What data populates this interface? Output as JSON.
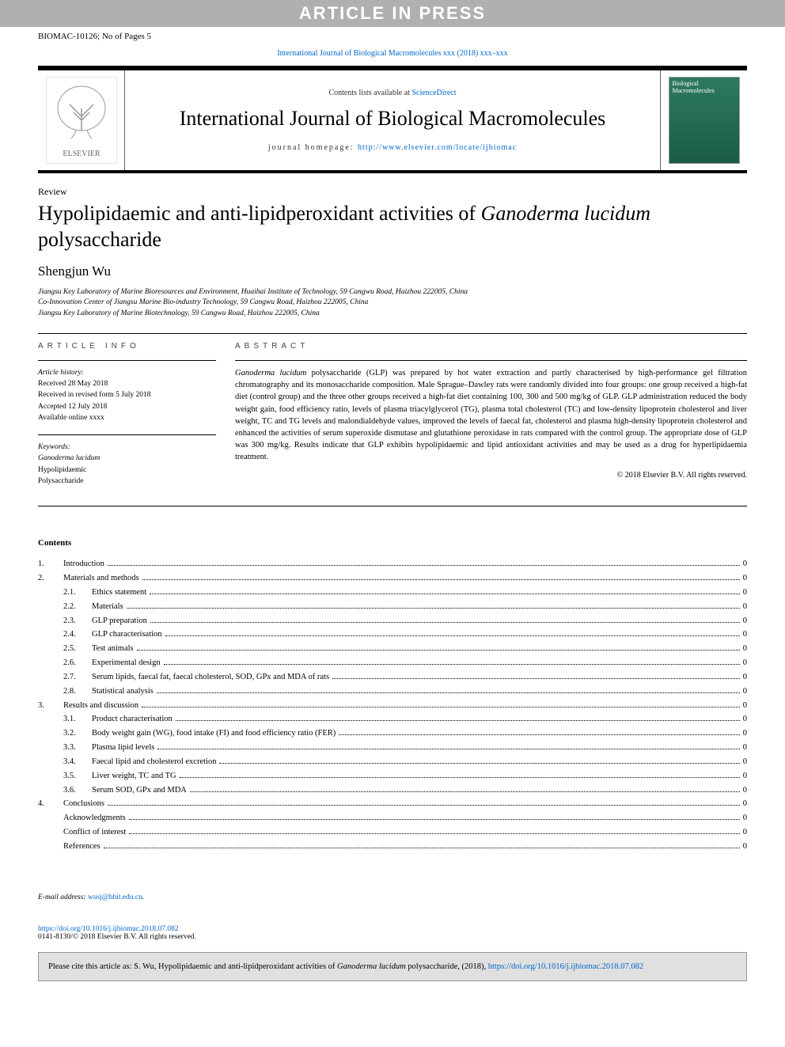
{
  "watermark": "ARTICLE IN PRESS",
  "manuscript_id": "BIOMAC-10126; No of Pages 5",
  "top_citation": {
    "text_prefix": "International Journal of Biological Macromolecules xxx (2018) xxx–xxx",
    "link_text": "International Journal of Biological Macromolecules xxx (2018) xxx–xxx"
  },
  "header": {
    "contents_avail_prefix": "Contents lists available at ",
    "contents_avail_link": "ScienceDirect",
    "journal_name": "International Journal of Biological Macromolecules",
    "homepage_label": "journal homepage: ",
    "homepage_url": "http://www.elsevier.com/locate/ijbiomac",
    "cover_title": "Biological Macromolecules"
  },
  "article": {
    "type": "Review",
    "title_pre": "Hypolipidaemic and anti-lipidperoxidant activities of ",
    "title_species": "Ganoderma lucidum",
    "title_post": " polysaccharide",
    "author": "Shengjun Wu",
    "affiliations": [
      "Jiangsu Key Laboratory of Marine Bioresources and Environment, Huaihai Institute of Technology, 59 Cangwu Road, Haizhou 222005, China",
      "Co-Innovation Center of Jiangsu Marine Bio-industry Technology, 59 Cangwu Road, Haizhou 222005, China",
      "Jiangsu Key Laboratory of Marine Biotechnology, 59 Cangwu Road, Haizhou 222005, China"
    ]
  },
  "info": {
    "section_label": "article info",
    "history_heading": "Article history:",
    "history": [
      "Received 28 May 2018",
      "Received in revised form 5 July 2018",
      "Accepted 12 July 2018",
      "Available online xxxx"
    ],
    "keywords_heading": "Keywords:",
    "keywords": [
      "Ganoderma lucidum",
      "Hypolipidaemic",
      "Polysaccharide"
    ]
  },
  "abstract": {
    "section_label": "abstract",
    "species": "Ganoderma lucidum",
    "text_post": " polysaccharide (GLP) was prepared by hot water extraction and partly characterised by high-performance gel filtration chromatography and its monosaccharide composition. Male Sprague–Dawley rats were randomly divided into four groups: one group received a high-fat diet (control group) and the three other groups received a high-fat diet containing 100, 300 and 500 mg/kg of GLP. GLP administration reduced the body weight gain, food efficiency ratio, levels of plasma triacylglycerol (TG), plasma total cholesterol (TC) and low-density lipoprotein cholesterol and liver weight, TC and TG levels and malondialdehyde values, improved the levels of faecal fat, cholesterol and plasma high-density lipoprotein cholesterol and enhanced the activities of serum superoxide dismutase and glutathione peroxidase in rats compared with the control group. The appropriate dose of GLP was 300 mg/kg. Results indicate that GLP exhibits hypolipidaemic and lipid antioxidant activities and may be used as a drug for hyperlipidaemia treatment.",
    "copyright": "© 2018 Elsevier B.V. All rights reserved."
  },
  "contents": {
    "heading": "Contents",
    "items": [
      {
        "num": "1.",
        "label": "Introduction",
        "page": "0",
        "sub": false
      },
      {
        "num": "2.",
        "label": "Materials and methods",
        "page": "0",
        "sub": false
      },
      {
        "num": "2.1.",
        "label": "Ethics statement",
        "page": "0",
        "sub": true
      },
      {
        "num": "2.2.",
        "label": "Materials",
        "page": "0",
        "sub": true
      },
      {
        "num": "2.3.",
        "label": "GLP preparation",
        "page": "0",
        "sub": true
      },
      {
        "num": "2.4.",
        "label": "GLP characterisation",
        "page": "0",
        "sub": true
      },
      {
        "num": "2.5.",
        "label": "Test animals",
        "page": "0",
        "sub": true
      },
      {
        "num": "2.6.",
        "label": "Experimental design",
        "page": "0",
        "sub": true
      },
      {
        "num": "2.7.",
        "label": "Serum lipids, faecal fat, faecal cholesterol, SOD, GPx and MDA of rats",
        "page": "0",
        "sub": true
      },
      {
        "num": "2.8.",
        "label": "Statistical analysis",
        "page": "0",
        "sub": true
      },
      {
        "num": "3.",
        "label": "Results and discussion",
        "page": "0",
        "sub": false
      },
      {
        "num": "3.1.",
        "label": "Product characterisation",
        "page": "0",
        "sub": true
      },
      {
        "num": "3.2.",
        "label": "Body weight gain (WG), food intake (FI) and food efficiency ratio (FER)",
        "page": "0",
        "sub": true
      },
      {
        "num": "3.3.",
        "label": "Plasma lipid levels",
        "page": "0",
        "sub": true
      },
      {
        "num": "3.4.",
        "label": "Faecal lipid and cholesterol excretion",
        "page": "0",
        "sub": true
      },
      {
        "num": "3.5.",
        "label": "Liver weight, TC and TG",
        "page": "0",
        "sub": true
      },
      {
        "num": "3.6.",
        "label": "Serum SOD, GPx and MDA",
        "page": "0",
        "sub": true
      },
      {
        "num": "4.",
        "label": "Conclusions",
        "page": "0",
        "sub": false
      },
      {
        "num": "",
        "label": "Acknowledgments",
        "page": "0",
        "sub": false
      },
      {
        "num": "",
        "label": "Conflict of interest",
        "page": "0",
        "sub": false
      },
      {
        "num": "",
        "label": "References",
        "page": "0",
        "sub": false
      }
    ]
  },
  "footer": {
    "email_label": "E-mail address: ",
    "email": "wusj@hhit.edu.cn",
    "doi_url": "https://doi.org/10.1016/j.ijbiomac.2018.07.082",
    "issn": "0141-8130/© 2018 Elsevier B.V. All rights reserved.",
    "cite_pre": "Please cite this article as: S. Wu, Hypolipidaemic and anti-lipidperoxidant activities of ",
    "cite_species": "Ganoderma lucidum",
    "cite_post": " polysaccharide, (2018), ",
    "cite_link": "https://doi.org/10.1016/j.ijbiomac.2018.07.082"
  },
  "colors": {
    "link": "#0066cc",
    "watermark_bg": "#b0b0b0",
    "cite_bg": "#e0e0e0",
    "cover_bg1": "#2d7a5f",
    "cover_bg2": "#1a5c43"
  }
}
